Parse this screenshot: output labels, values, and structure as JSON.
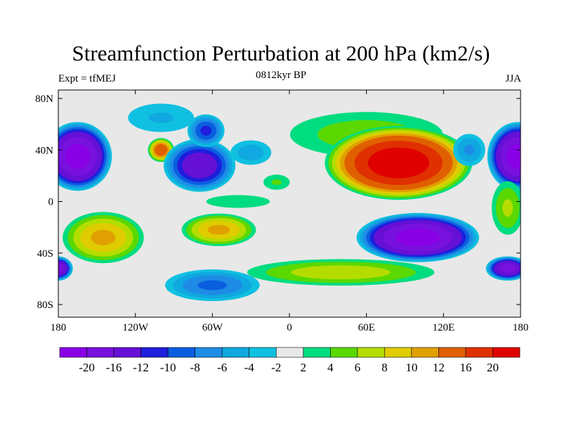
{
  "chart_data": {
    "type": "heatmap",
    "title": "Streamfunction Perturbation at 200 hPa (km2/s)",
    "left_string": "Expt = tfMEJ",
    "center_string": "0812kyr BP",
    "right_string": "JJA",
    "x_ticks": [
      "180",
      "120W",
      "60W",
      "0",
      "60E",
      "120E",
      "180"
    ],
    "x_tick_values": [
      -180,
      -120,
      -60,
      0,
      60,
      120,
      180
    ],
    "y_ticks": [
      "80N",
      "40N",
      "0",
      "40S",
      "80S"
    ],
    "y_tick_values": [
      80,
      40,
      0,
      -40,
      -80
    ],
    "xlim": [
      -180,
      180
    ],
    "ylim": [
      -90,
      87
    ],
    "colorbar_labels": [
      "-20",
      "-16",
      "-12",
      "-10",
      "-8",
      "-6",
      "-4",
      "-2",
      "2",
      "4",
      "6",
      "8",
      "10",
      "12",
      "16",
      "20"
    ],
    "levels": [
      -20,
      -16,
      -12,
      -10,
      -8,
      -6,
      -4,
      -2,
      2,
      4,
      6,
      8,
      10,
      12,
      16,
      20
    ],
    "colors": [
      "#8a00e6",
      "#7810de",
      "#6610d6",
      "#1e1edc",
      "#0a5ee0",
      "#1e8ce6",
      "#10a8e0",
      "#10c0e0",
      "#e8e8e8",
      "#00dc80",
      "#5ad800",
      "#b4dc00",
      "#e0cc00",
      "#e0a000",
      "#e06000",
      "#e03000",
      "#e00000"
    ],
    "features": [
      {
        "lon": 60,
        "lat": 52,
        "rlon": 75,
        "rlat": 22,
        "peak": 5
      },
      {
        "lon": 85,
        "lat": 30,
        "rlon": 60,
        "rlat": 30,
        "peak": 22
      },
      {
        "lon": -100,
        "lat": 65,
        "rlon": 35,
        "rlat": 15,
        "peak": -4
      },
      {
        "lon": -165,
        "lat": 35,
        "rlon": 28,
        "rlat": 28,
        "peak": -21
      },
      {
        "lon": 178,
        "lat": 35,
        "rlon": 25,
        "rlat": 28,
        "peak": -21
      },
      {
        "lon": 140,
        "lat": 40,
        "rlon": 15,
        "rlat": 15,
        "peak": -6
      },
      {
        "lon": -100,
        "lat": 40,
        "rlon": 11,
        "rlat": 10,
        "peak": 14
      },
      {
        "lon": -70,
        "lat": 28,
        "rlon": 30,
        "rlat": 22,
        "peak": -14
      },
      {
        "lon": -65,
        "lat": 55,
        "rlon": 16,
        "rlat": 14,
        "peak": -10
      },
      {
        "lon": -30,
        "lat": 38,
        "rlon": 20,
        "rlat": 12,
        "peak": -5
      },
      {
        "lon": -10,
        "lat": 15,
        "rlon": 14,
        "rlat": 8,
        "peak": 4
      },
      {
        "lon": -40,
        "lat": 0,
        "rlon": 40,
        "rlat": 8,
        "peak": 3
      },
      {
        "lon": 170,
        "lat": -5,
        "rlon": 15,
        "rlat": 25,
        "peak": 6
      },
      {
        "lon": -145,
        "lat": -28,
        "rlon": 35,
        "rlat": 22,
        "peak": 10
      },
      {
        "lon": -55,
        "lat": -22,
        "rlon": 32,
        "rlat": 14,
        "peak": 10
      },
      {
        "lon": 100,
        "lat": -28,
        "rlon": 50,
        "rlat": 20,
        "peak": -21
      },
      {
        "lon": 40,
        "lat": -55,
        "rlon": 85,
        "rlat": 12,
        "peak": 7
      },
      {
        "lon": -60,
        "lat": -65,
        "rlon": 42,
        "rlat": 14,
        "peak": -8
      },
      {
        "lon": 170,
        "lat": -52,
        "rlon": 18,
        "rlat": 10,
        "peak": -17
      },
      {
        "lon": -180,
        "lat": -52,
        "rlon": 12,
        "rlat": 10,
        "peak": -17
      }
    ]
  }
}
